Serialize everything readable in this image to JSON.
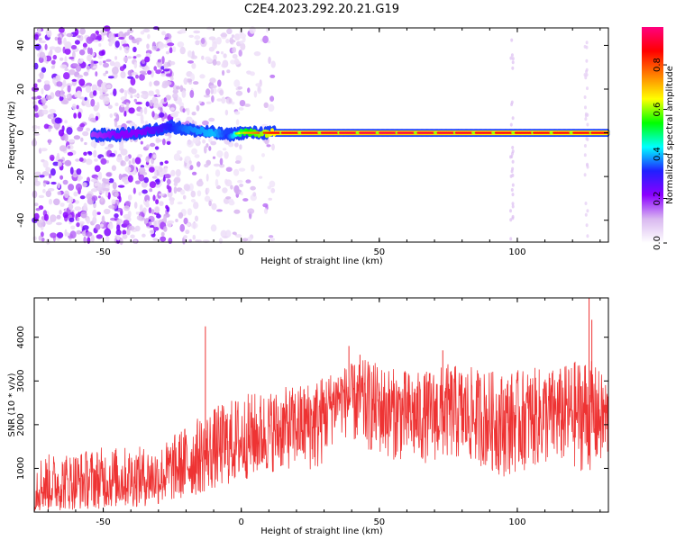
{
  "figure_title": "C2E4.2023.292.20.21.G19",
  "chart_data": [
    {
      "type": "heatmap",
      "title": "",
      "xlabel": "Height of straight line (km)",
      "ylabel": "Frequency (Hz)",
      "xlim": [
        -75,
        133
      ],
      "ylim": [
        -50,
        48
      ],
      "x_ticks": [
        -50,
        0,
        50,
        100
      ],
      "y_ticks": [
        -40,
        -20,
        0,
        20,
        40
      ],
      "x_tick_labels": [
        "-50",
        "0",
        "50",
        "100"
      ],
      "y_tick_labels": [
        "-40",
        "-20",
        "0",
        "20",
        "40"
      ],
      "colorbar": {
        "label": "Normalized spectral amplitude",
        "range": [
          0,
          0.97
        ],
        "ticks": [
          0.0,
          0.2,
          0.4,
          0.6,
          0.8
        ],
        "tick_labels": [
          "0.0",
          "0.2",
          "0.4",
          "0.6",
          "0.8"
        ],
        "colormap": [
          "#ffffff",
          "#d9b8f0",
          "#8b00ff",
          "#2020ff",
          "#00ffff",
          "#00ff00",
          "#ffff00",
          "#ff8000",
          "#ff0000",
          "#ff007f"
        ]
      },
      "signal_trace": {
        "description_points": [
          {
            "x": -54,
            "y": -1,
            "amplitude": 0.25
          },
          {
            "x": -45,
            "y": -1,
            "amplitude": 0.3
          },
          {
            "x": -37,
            "y": 0,
            "amplitude": 0.3
          },
          {
            "x": -25,
            "y": 3,
            "amplitude": 0.45
          },
          {
            "x": -20,
            "y": 1.5,
            "amplitude": 0.5
          },
          {
            "x": -10,
            "y": 0,
            "amplitude": 0.55
          },
          {
            "x": -5,
            "y": -1,
            "amplitude": 0.45
          },
          {
            "x": 0,
            "y": 0,
            "amplitude": 0.7
          },
          {
            "x": 12,
            "y": 0,
            "amplitude": 0.9
          },
          {
            "x": 50,
            "y": 0,
            "amplitude": 0.95
          },
          {
            "x": 100,
            "y": 0,
            "amplitude": 0.9
          },
          {
            "x": 133,
            "y": 0,
            "amplitude": 0.9
          }
        ]
      },
      "noise_regions": [
        {
          "x_range": [
            -75,
            -25
          ],
          "density": "high"
        },
        {
          "x_range": [
            -25,
            0
          ],
          "density": "medium"
        },
        {
          "x_range": [
            0,
            12
          ],
          "density": "low"
        }
      ]
    },
    {
      "type": "line",
      "title": "",
      "xlabel": "Height of straight line (km)",
      "ylabel": "SNR (10 * v/v)",
      "xlim": [
        -75,
        133
      ],
      "ylim": [
        0,
        4900
      ],
      "x_ticks": [
        -50,
        0,
        50,
        100
      ],
      "y_ticks": [
        1000,
        2000,
        3000,
        4000
      ],
      "x_tick_labels": [
        "-50",
        "0",
        "50",
        "100"
      ],
      "y_tick_labels": [
        "1000",
        "2000",
        "3000",
        "4000"
      ],
      "color": "#ee3333",
      "envelope": [
        {
          "x": -75,
          "low": 0,
          "mid": 600,
          "high": 1300
        },
        {
          "x": -60,
          "low": 50,
          "mid": 650,
          "high": 1400
        },
        {
          "x": -50,
          "low": 80,
          "mid": 700,
          "high": 1500
        },
        {
          "x": -40,
          "low": 100,
          "mid": 750,
          "high": 1500
        },
        {
          "x": -30,
          "low": 150,
          "mid": 800,
          "high": 1500
        },
        {
          "x": -20,
          "low": 300,
          "mid": 1100,
          "high": 2000
        },
        {
          "x": -10,
          "low": 500,
          "mid": 1400,
          "high": 2400
        },
        {
          "x": 0,
          "low": 700,
          "mid": 1600,
          "high": 2700
        },
        {
          "x": 10,
          "low": 900,
          "mid": 1800,
          "high": 2800
        },
        {
          "x": 20,
          "low": 1000,
          "mid": 2000,
          "high": 2900
        },
        {
          "x": 28,
          "low": 900,
          "mid": 2100,
          "high": 3100
        },
        {
          "x": 35,
          "low": 1800,
          "mid": 2700,
          "high": 3300
        },
        {
          "x": 45,
          "low": 1400,
          "mid": 2500,
          "high": 3500
        },
        {
          "x": 55,
          "low": 1200,
          "mid": 2300,
          "high": 3300
        },
        {
          "x": 65,
          "low": 1100,
          "mid": 2200,
          "high": 3200
        },
        {
          "x": 75,
          "low": 1200,
          "mid": 2300,
          "high": 3400
        },
        {
          "x": 85,
          "low": 1100,
          "mid": 2200,
          "high": 3300
        },
        {
          "x": 95,
          "low": 800,
          "mid": 2100,
          "high": 3200
        },
        {
          "x": 105,
          "low": 1000,
          "mid": 2200,
          "high": 3300
        },
        {
          "x": 115,
          "low": 1100,
          "mid": 2300,
          "high": 3300
        },
        {
          "x": 125,
          "low": 900,
          "mid": 2300,
          "high": 3600
        },
        {
          "x": 133,
          "low": 1100,
          "mid": 2200,
          "high": 3000
        }
      ],
      "spikes": [
        {
          "x": -13,
          "y": 4250
        },
        {
          "x": 39,
          "y": 3800
        },
        {
          "x": 43,
          "y": 3600
        },
        {
          "x": 73,
          "y": 3700
        },
        {
          "x": 126,
          "y": 4900
        },
        {
          "x": 127,
          "y": 4400
        }
      ]
    }
  ]
}
